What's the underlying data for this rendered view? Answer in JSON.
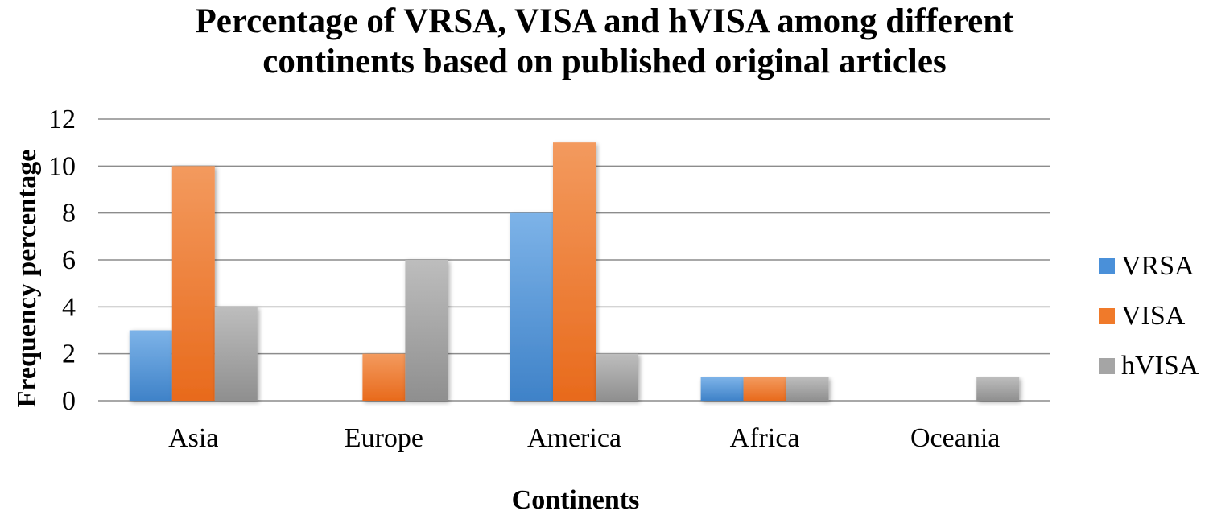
{
  "chart_data": {
    "type": "bar",
    "title_lines": [
      "Percentage of VRSA, VISA and hVISA among different",
      "continents based on published original articles"
    ],
    "xlabel": "Continents",
    "ylabel": "Frequency percentage",
    "categories": [
      "Asia",
      "Europe",
      "America",
      "Africa",
      "Oceania"
    ],
    "series": [
      {
        "name": "VRSA",
        "color": "#4A90D9",
        "values": [
          3,
          0,
          8,
          1,
          0
        ]
      },
      {
        "name": "VISA",
        "color": "#F07A2A",
        "values": [
          10,
          2,
          11,
          1,
          0
        ]
      },
      {
        "name": "hVISA",
        "color": "#A5A5A5",
        "values": [
          4,
          6,
          2,
          1,
          1
        ]
      }
    ],
    "ylim": [
      0,
      12
    ],
    "yticks": [
      "0",
      "2",
      "4",
      "6",
      "8",
      "10",
      "12"
    ],
    "grid": true,
    "legend_position": "right"
  }
}
